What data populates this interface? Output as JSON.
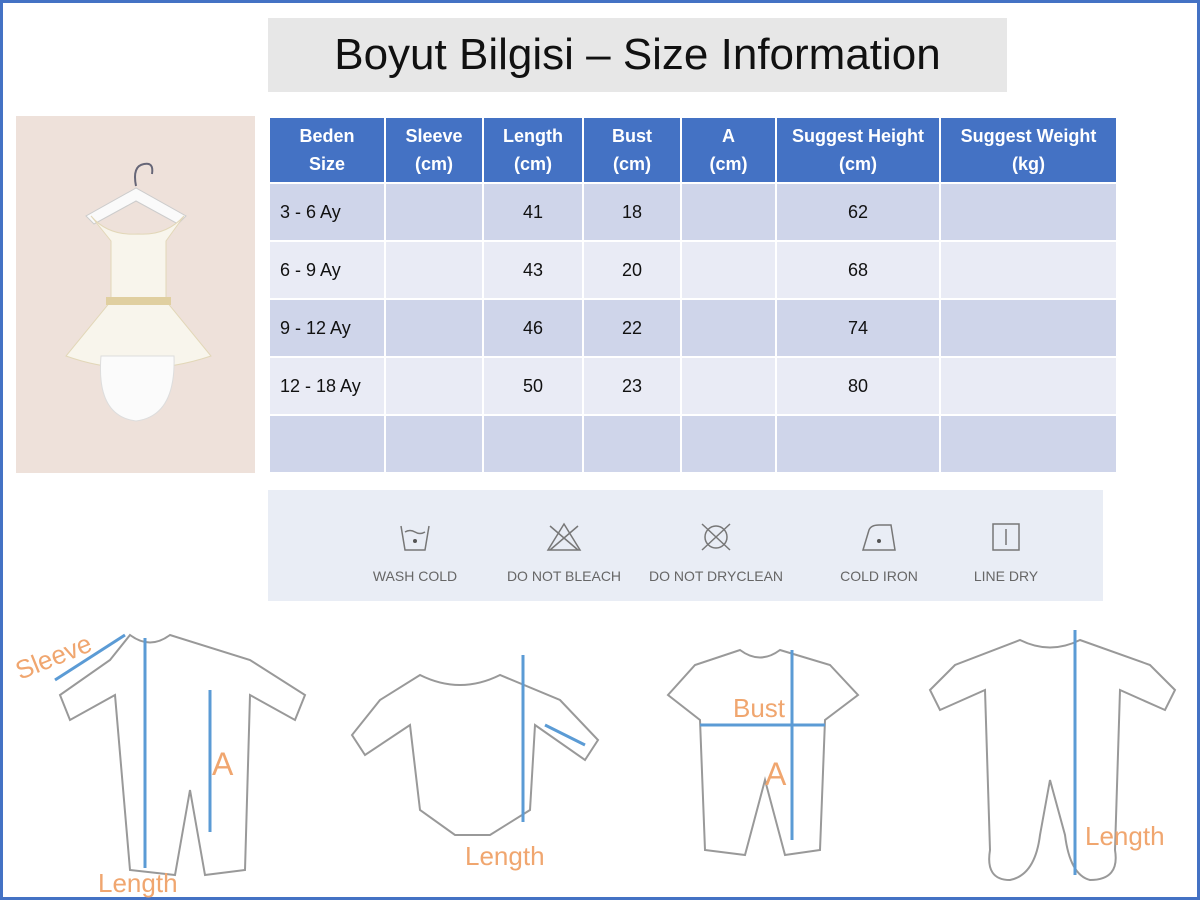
{
  "title": "Boyut Bilgisi – Size Information",
  "table": {
    "headers": [
      [
        "Beden",
        "Size"
      ],
      [
        "Sleeve",
        "(cm)"
      ],
      [
        "Length",
        "(cm)"
      ],
      [
        "Bust",
        "(cm)"
      ],
      [
        "A",
        "(cm)"
      ],
      [
        "Suggest Height",
        "(cm)"
      ],
      [
        "Suggest Weight",
        "(kg)"
      ]
    ],
    "rows": [
      [
        "3 - 6 Ay",
        "",
        "41",
        "18",
        "",
        "62",
        ""
      ],
      [
        "6 - 9 Ay",
        "",
        "43",
        "20",
        "",
        "68",
        ""
      ],
      [
        "9 - 12 Ay",
        "",
        "46",
        "22",
        "",
        "74",
        ""
      ],
      [
        "12 - 18 Ay",
        "",
        "50",
        "23",
        "",
        "80",
        ""
      ],
      [
        "",
        "",
        "",
        "",
        "",
        "",
        ""
      ]
    ]
  },
  "care": [
    {
      "label": "WASH COLD",
      "icon": "wash-cold-icon"
    },
    {
      "label": "DO NOT BLEACH",
      "icon": "do-not-bleach-icon"
    },
    {
      "label": "DO NOT DRYCLEAN",
      "icon": "do-not-dryclean-icon"
    },
    {
      "label": "COLD IRON",
      "icon": "cold-iron-icon"
    },
    {
      "label": "LINE DRY",
      "icon": "line-dry-icon"
    }
  ],
  "diagrams": {
    "sleeve": "Sleeve",
    "a1": "A",
    "length1": "Length",
    "length2": "Length",
    "bust": "Bust",
    "a3": "A",
    "length4": "Length"
  },
  "colors": {
    "header": "#4472c4",
    "row_dark": "#cfd5ea",
    "row_light": "#e9ebf5",
    "measure_line": "#5b9bd5",
    "label": "#f0a66f"
  }
}
